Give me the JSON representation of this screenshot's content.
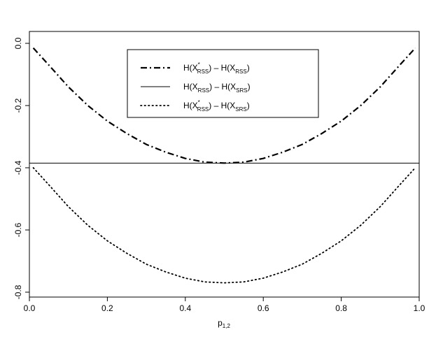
{
  "chart_data": {
    "type": "line",
    "title": "",
    "xlabel": {
      "base": "p",
      "sub": "1,2"
    },
    "ylabel": "",
    "xlim": [
      0.0,
      1.0
    ],
    "ylim": [
      -0.8,
      0.0
    ],
    "x_ticks": [
      0.0,
      0.2,
      0.4,
      0.6,
      0.8,
      1.0
    ],
    "x_tick_labels": [
      "0.0",
      "0.2",
      "0.4",
      "0.6",
      "0.8",
      "1.0"
    ],
    "y_ticks": [
      0.0,
      -0.2,
      -0.4,
      -0.6,
      -0.8
    ],
    "y_tick_labels": [
      "0.0",
      "-0.2",
      "-0.4",
      "-0.6",
      "-0.8"
    ],
    "grid": false,
    "legend_position": "top-center",
    "series": [
      {
        "name": "H(X*RSS) - H(XRSS)",
        "legend": {
          "a": "H(X",
          "a_sup": "*",
          "a_sub": "RSS",
          "b": ") – H(X",
          "b_sub": "RSS",
          "c": ")"
        },
        "style": "dashdot",
        "x": [
          0.01,
          0.05,
          0.1,
          0.15,
          0.2,
          0.25,
          0.3,
          0.35,
          0.4,
          0.45,
          0.5,
          0.55,
          0.6,
          0.65,
          0.7,
          0.75,
          0.8,
          0.85,
          0.9,
          0.95,
          0.99
        ],
        "y": [
          -0.015,
          -0.07,
          -0.14,
          -0.2,
          -0.25,
          -0.29,
          -0.325,
          -0.35,
          -0.37,
          -0.382,
          -0.385,
          -0.382,
          -0.37,
          -0.35,
          -0.325,
          -0.29,
          -0.25,
          -0.2,
          -0.14,
          -0.07,
          -0.015
        ]
      },
      {
        "name": "H(XRSS) - H(XSRS)",
        "legend": {
          "a": "H(X",
          "a_sup": "",
          "a_sub": "RSS",
          "b": ") – H(X",
          "b_sub": "SRS",
          "c": ")"
        },
        "style": "solid",
        "x": [
          0.0,
          1.0
        ],
        "y": [
          -0.385,
          -0.385
        ]
      },
      {
        "name": "H(X*RSS) - H(XSRS)",
        "legend": {
          "a": "H(X",
          "a_sup": "*",
          "a_sub": "RSS",
          "b": ") – H(X",
          "b_sub": "SRS",
          "c": ")"
        },
        "style": "dotted",
        "x": [
          0.01,
          0.05,
          0.1,
          0.15,
          0.2,
          0.25,
          0.3,
          0.35,
          0.4,
          0.45,
          0.5,
          0.55,
          0.6,
          0.65,
          0.7,
          0.75,
          0.8,
          0.85,
          0.9,
          0.95,
          0.99
        ],
        "y": [
          -0.4,
          -0.455,
          -0.525,
          -0.585,
          -0.635,
          -0.675,
          -0.71,
          -0.735,
          -0.755,
          -0.767,
          -0.77,
          -0.767,
          -0.755,
          -0.735,
          -0.71,
          -0.675,
          -0.635,
          -0.585,
          -0.525,
          -0.455,
          -0.4
        ]
      }
    ]
  }
}
